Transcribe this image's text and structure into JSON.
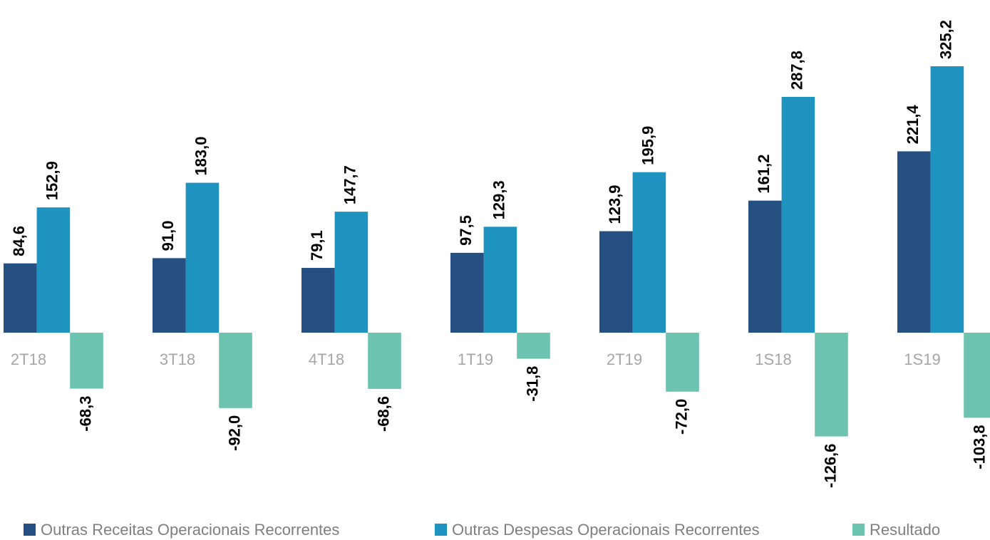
{
  "chart_data": {
    "type": "bar",
    "categories": [
      "2T18",
      "3T18",
      "4T18",
      "1T19",
      "2T19",
      "1S18",
      "1S19"
    ],
    "series": [
      {
        "name": "Outras Receitas Operacionais Recorrentes",
        "color": "#264f82",
        "values": [
          84.6,
          91.0,
          79.1,
          97.5,
          123.9,
          161.2,
          221.4
        ],
        "value_labels": [
          "84,6",
          "91,0",
          "79,1",
          "97,5",
          "123,9",
          "161,2",
          "221,4"
        ]
      },
      {
        "name": "Outras Despesas Operacionais Recorrentes",
        "color": "#1e93c0",
        "values": [
          152.9,
          183.0,
          147.7,
          129.3,
          195.9,
          287.8,
          325.2
        ],
        "value_labels": [
          "152,9",
          "183,0",
          "147,7",
          "129,3",
          "195,9",
          "287,8",
          "325,2"
        ]
      },
      {
        "name": "Resultado",
        "color": "#6cc3b0",
        "values": [
          -68.3,
          -92.0,
          -68.6,
          -31.8,
          -72.0,
          -126.6,
          -103.8
        ],
        "value_labels": [
          "-68,3",
          "-92,0",
          "-68,6",
          "-31,8",
          "-72,0",
          "-126,6",
          "-103,8"
        ]
      }
    ],
    "ylim": [
      -210,
      400
    ],
    "legend": "bottom"
  }
}
